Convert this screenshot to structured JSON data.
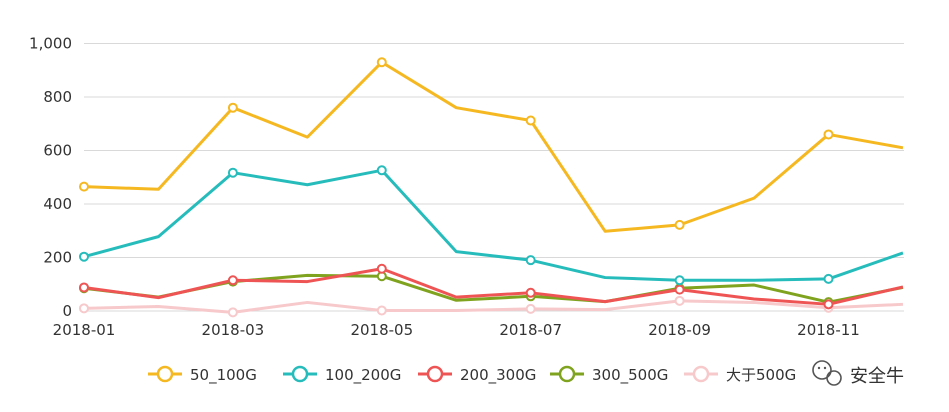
{
  "chart_data": {
    "type": "line",
    "title": "",
    "xlabel": "",
    "ylabel": "",
    "ylim": [
      0,
      1000
    ],
    "yticks": [
      "0",
      "200",
      "400",
      "600",
      "800",
      "1,000"
    ],
    "x": [
      "2018-01",
      "2018-02",
      "2018-03",
      "2018-04",
      "2018-05",
      "2018-06",
      "2018-07",
      "2018-08",
      "2018-09",
      "2018-10",
      "2018-11",
      "2018-12"
    ],
    "xtick_labels": [
      "2018-01",
      "2018-03",
      "2018-05",
      "2018-07",
      "2018-09",
      "2018-11"
    ],
    "grid": true,
    "legend_position": "bottom",
    "series": [
      {
        "name": "50_100G",
        "color": "#F5B820",
        "values": [
          465,
          455,
          760,
          650,
          930,
          760,
          712,
          298,
          322,
          422,
          660,
          610
        ]
      },
      {
        "name": "100_200G",
        "color": "#27BCBC",
        "values": [
          203,
          278,
          517,
          472,
          526,
          222,
          190,
          125,
          115,
          115,
          120,
          217
        ]
      },
      {
        "name": "200_300G",
        "color": "#EF5454",
        "values": [
          88,
          50,
          115,
          110,
          158,
          52,
          68,
          35,
          80,
          45,
          25,
          90
        ]
      },
      {
        "name": "300_500G",
        "color": "#7FA31E",
        "values": [
          85,
          52,
          110,
          133,
          130,
          40,
          55,
          35,
          85,
          97,
          33,
          88
        ]
      },
      {
        "name": "大于500G",
        "color": "#F7C9CB",
        "values": [
          10,
          17,
          -5,
          32,
          2,
          2,
          8,
          5,
          38,
          32,
          12,
          25
        ]
      }
    ]
  },
  "watermark": {
    "text": "安全牛",
    "icon": "wechat-icon"
  }
}
